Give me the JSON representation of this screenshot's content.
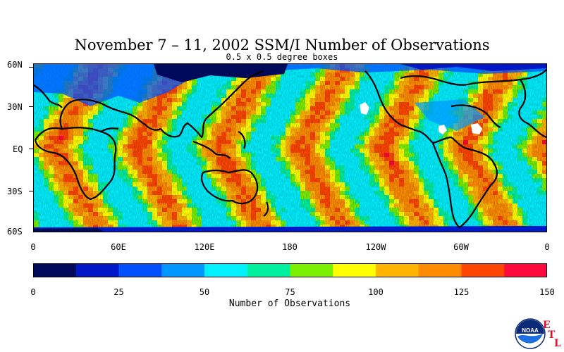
{
  "title": "November 7 – 11, 2002 SSM/I Number of Observations",
  "subtitle": "0.5 x 0.5 degree boxes",
  "lat_labels": [
    "60N",
    "30N",
    "EQ",
    "30S",
    "60S"
  ],
  "lon_labels": [
    "0",
    "60E",
    "120E",
    "180",
    "120W",
    "60W",
    "0"
  ],
  "legend": {
    "title": "Number of Observations",
    "labels": [
      "0",
      "25",
      "50",
      "75",
      "100",
      "125",
      "150"
    ],
    "colors": [
      "#000a5a",
      "#0019c8",
      "#0050ff",
      "#0096ff",
      "#00f0ff",
      "#00f0a0",
      "#78f000",
      "#ffff00",
      "#ffb400",
      "#ff8c00",
      "#ff4600",
      "#ff0a3c"
    ]
  },
  "logo": {
    "text": "NOAA",
    "letters": [
      "E",
      "T",
      "L"
    ]
  },
  "chart_data": {
    "type": "heatmap",
    "title": "November 7 – 11, 2002 SSM/I Number of Observations",
    "subtitle": "0.5 x 0.5 degree boxes",
    "xlabel": "",
    "ylabel": "",
    "x_ticks": [
      "0",
      "60E",
      "120E",
      "180",
      "120W",
      "60W",
      "0"
    ],
    "y_ticks": [
      "60N",
      "30N",
      "EQ",
      "30S",
      "60S"
    ],
    "colorbar_label": "Number of Observations",
    "colorbar_ticks": [
      0,
      25,
      50,
      75,
      100,
      125,
      150
    ],
    "value_range": [
      0,
      150
    ]
  }
}
